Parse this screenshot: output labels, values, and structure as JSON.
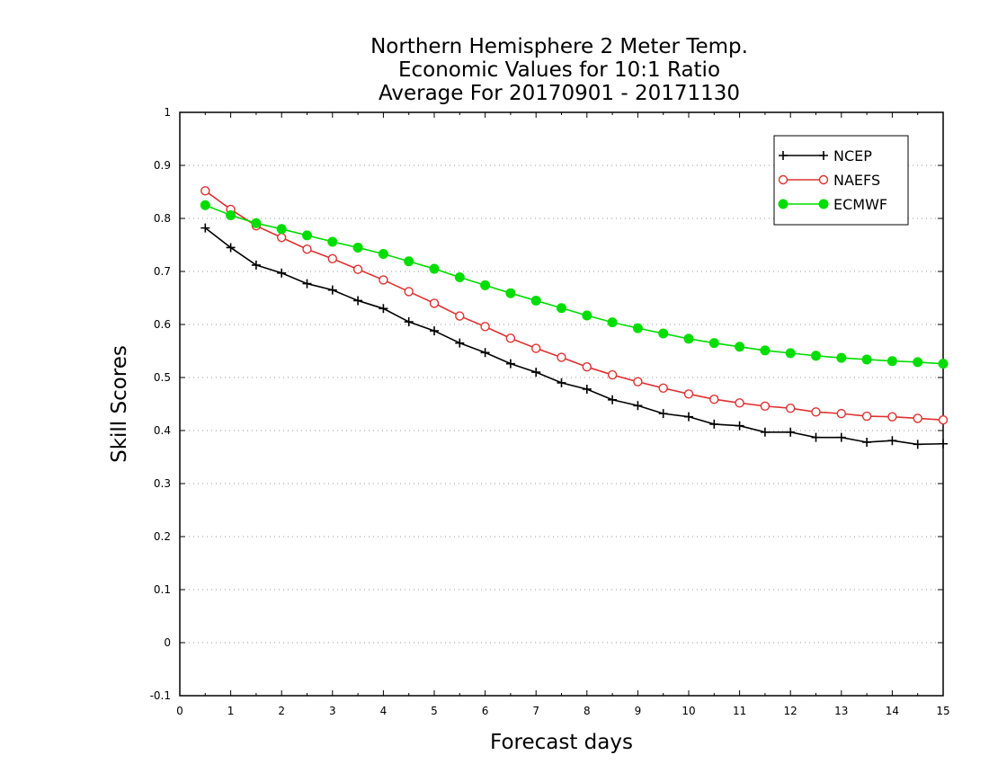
{
  "chart_data": {
    "type": "line",
    "title": [
      "Northern Hemisphere 2 Meter Temp.",
      "Economic Values for 10:1 Ratio",
      "Average For 20170901 - 20171130"
    ],
    "xlabel": "Forecast days",
    "ylabel": "Skill Scores",
    "xlim": [
      0,
      15
    ],
    "ylim": [
      -0.1,
      1
    ],
    "xticks": [
      0,
      1,
      2,
      3,
      4,
      5,
      6,
      7,
      8,
      9,
      10,
      11,
      12,
      13,
      14,
      15
    ],
    "xtick_labels": [
      "0",
      "1",
      "2",
      "3",
      "4",
      "5",
      "6",
      "7",
      "8",
      "9",
      "10",
      "11",
      "12",
      "13",
      "14",
      "15"
    ],
    "yticks": [
      -0.1,
      0,
      0.1,
      0.2,
      0.3,
      0.4,
      0.5,
      0.6,
      0.7,
      0.8,
      0.9,
      1
    ],
    "ytick_labels": [
      "-0.1",
      "0",
      "0.1",
      "0.2",
      "0.3",
      "0.4",
      "0.5",
      "0.6",
      "0.7",
      "0.8",
      "0.9",
      "1"
    ],
    "grid": true,
    "legend_position": "top-right",
    "x": [
      0.5,
      1,
      1.5,
      2,
      2.5,
      3,
      3.5,
      4,
      4.5,
      5,
      5.5,
      6,
      6.5,
      7,
      7.5,
      8,
      8.5,
      9,
      9.5,
      10,
      10.5,
      11,
      11.5,
      12,
      12.5,
      13,
      13.5,
      14,
      14.5,
      15
    ],
    "series": [
      {
        "name": "NCEP",
        "color": "#000000",
        "marker": "plus",
        "values": [
          0.782,
          0.745,
          0.712,
          0.697,
          0.677,
          0.665,
          0.645,
          0.63,
          0.605,
          0.588,
          0.565,
          0.547,
          0.526,
          0.51,
          0.49,
          0.478,
          0.458,
          0.447,
          0.432,
          0.426,
          0.412,
          0.409,
          0.397,
          0.397,
          0.387,
          0.387,
          0.378,
          0.381,
          0.374,
          0.375
        ]
      },
      {
        "name": "NAEFS",
        "color": "#e03030",
        "marker": "open-circle",
        "values": [
          0.852,
          0.817,
          0.786,
          0.764,
          0.742,
          0.724,
          0.704,
          0.684,
          0.662,
          0.64,
          0.616,
          0.596,
          0.574,
          0.555,
          0.538,
          0.52,
          0.505,
          0.492,
          0.48,
          0.469,
          0.459,
          0.452,
          0.446,
          0.442,
          0.435,
          0.432,
          0.427,
          0.426,
          0.423,
          0.42
        ]
      },
      {
        "name": "ECMWF",
        "color": "#00dd00",
        "marker": "filled-circle",
        "values": [
          0.825,
          0.806,
          0.791,
          0.78,
          0.768,
          0.756,
          0.745,
          0.733,
          0.719,
          0.705,
          0.689,
          0.674,
          0.659,
          0.645,
          0.631,
          0.617,
          0.604,
          0.593,
          0.583,
          0.573,
          0.565,
          0.558,
          0.551,
          0.546,
          0.541,
          0.537,
          0.534,
          0.531,
          0.529,
          0.526
        ]
      }
    ]
  }
}
